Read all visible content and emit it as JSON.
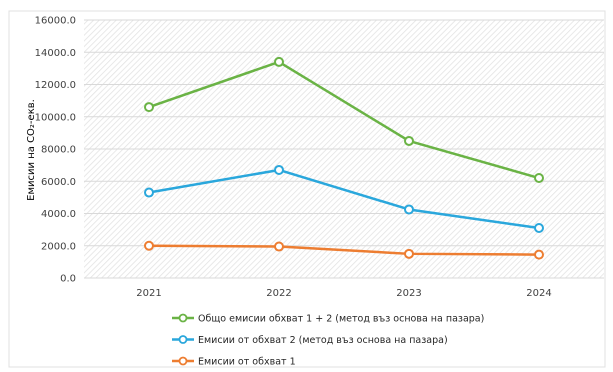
{
  "chart_data": {
    "type": "line",
    "x": [
      "2021",
      "2022",
      "2023",
      "2024"
    ],
    "ylabel": "Емисии на CO₂-екв.",
    "ylim": [
      0,
      16000
    ],
    "yticks": [
      "0.0",
      "2000.0",
      "4000.0",
      "6000.0",
      "8000.0",
      "10000.0",
      "12000.0",
      "14000.0",
      "16000.0"
    ],
    "grid": true,
    "legend_position": "bottom",
    "series": [
      {
        "name": "Общо емисии обхват 1 + 2 (метод въз основа на пазара)",
        "values": [
          10600,
          13400,
          8500,
          6200
        ],
        "color": "#6ab345"
      },
      {
        "name": "Емисии от обхват 2 (метод въз основа на пазара)",
        "values": [
          5300,
          6700,
          4250,
          3100
        ],
        "color": "#2aa7dc"
      },
      {
        "name": "Емисии от обхват 1",
        "values": [
          2000,
          1950,
          1500,
          1450
        ],
        "color": "#ed7d31"
      }
    ]
  }
}
